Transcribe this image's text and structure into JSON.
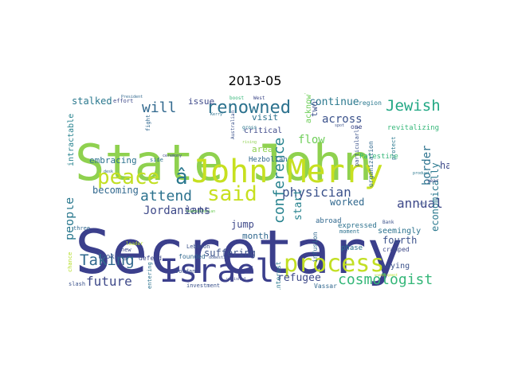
{
  "title": "2013-05",
  "wordcloud": {
    "colormap": "viridis",
    "background": "#ffffff",
    "words": [
      {
        "text": "Secretary",
        "color": "#3b3f8c"
      },
      {
        "text": "State John",
        "color": "#8fd14f"
      },
      {
        "text": "John Merry",
        "color": "#c7e020"
      },
      {
        "text": "Israel",
        "color": "#3b3f8c"
      },
      {
        "text": "process",
        "color": "#c2df23"
      },
      {
        "text": "peace",
        "color": "#c2df23"
      },
      {
        "text": "â",
        "color": "#2a788e"
      },
      {
        "text": "said",
        "color": "#c7e020"
      },
      {
        "text": "renowned",
        "color": "#2c728e"
      },
      {
        "text": "Jewish",
        "color": "#22a884"
      },
      {
        "text": "Taking",
        "color": "#31688e"
      },
      {
        "text": "physician",
        "color": "#3b528b"
      },
      {
        "text": "cosmologist",
        "color": "#35b779"
      },
      {
        "text": "conference",
        "color": "#26828e"
      },
      {
        "text": "attend",
        "color": "#2c728e"
      },
      {
        "text": "annual",
        "color": "#3e4989"
      },
      {
        "text": "people",
        "color": "#2a788e"
      },
      {
        "text": "future",
        "color": "#3e4989"
      },
      {
        "text": "will",
        "color": "#31688e"
      },
      {
        "text": "Jordanians",
        "color": "#3e4989"
      },
      {
        "text": "continue",
        "color": "#2a788e"
      },
      {
        "text": "across",
        "color": "#3b528b"
      },
      {
        "text": "border",
        "color": "#2c728e"
      },
      {
        "text": "flow",
        "color": "#6ece58"
      },
      {
        "text": "refugee",
        "color": "#3e4989"
      },
      {
        "text": "start",
        "color": "#26828e"
      },
      {
        "text": "worked",
        "color": "#31688e"
      },
      {
        "text": "fourth",
        "color": "#3b528b"
      },
      {
        "text": "economically",
        "color": "#2a788e"
      },
      {
        "text": "becoming",
        "color": "#31688e"
      },
      {
        "text": "stalked",
        "color": "#2a788e"
      },
      {
        "text": "issue",
        "color": "#3e4989"
      },
      {
        "text": "visit",
        "color": "#2c728e"
      },
      {
        "text": "two",
        "color": "#3b528b"
      },
      {
        "text": "jump",
        "color": "#3e4989"
      },
      {
        "text": "suffering",
        "color": "#3b528b"
      },
      {
        "text": "month",
        "color": "#31688e"
      },
      {
        "text": "ha",
        "color": "#3e4989"
      },
      {
        "text": "embracing",
        "color": "#2c728e"
      },
      {
        "text": "intractable",
        "color": "#26828e"
      },
      {
        "text": "critical",
        "color": "#3e4989"
      },
      {
        "text": "area",
        "color": "#8fd14f"
      },
      {
        "text": "Hezbollah",
        "color": "#31688e"
      },
      {
        "text": "acknowledge",
        "color": "#6ece58"
      },
      {
        "text": "Palestine",
        "color": "#35b779"
      },
      {
        "text": "seemingly",
        "color": "#2c728e"
      },
      {
        "text": "saying",
        "color": "#3b528b"
      },
      {
        "text": "expressed",
        "color": "#2c728e"
      },
      {
        "text": "doubt",
        "color": "#3e4989"
      },
      {
        "text": "abroad",
        "color": "#31688e"
      },
      {
        "text": "looking",
        "color": "#3b528b"
      },
      {
        "text": "defend",
        "color": "#3e4989"
      },
      {
        "text": "founded",
        "color": "#31688e"
      },
      {
        "text": "Lebanon",
        "color": "#3b528b"
      },
      {
        "text": "infusion",
        "color": "#31688e"
      },
      {
        "text": "phase",
        "color": "#2c728e"
      },
      {
        "text": "cramped",
        "color": "#3e4989"
      },
      {
        "text": "region",
        "color": "#2a788e"
      },
      {
        "text": "revitalizing",
        "color": "#35b779"
      },
      {
        "text": "organization",
        "color": "#31688e"
      },
      {
        "text": "particularly",
        "color": "#3b528b"
      },
      {
        "text": "moment",
        "color": "#2c728e"
      },
      {
        "text": "one",
        "color": "#3e4989"
      },
      {
        "text": "Vassar",
        "color": "#31688e"
      },
      {
        "text": "investment",
        "color": "#3b528b"
      },
      {
        "text": "interest",
        "color": "#2a788e"
      },
      {
        "text": "entering",
        "color": "#2c728e"
      },
      {
        "text": "Jordan",
        "color": "#3b528b"
      },
      {
        "text": "new",
        "color": "#3e4989"
      },
      {
        "text": "three",
        "color": "#31688e"
      },
      {
        "text": "slash",
        "color": "#3b528b"
      },
      {
        "text": "chance",
        "color": "#b5de2b"
      },
      {
        "text": "effort",
        "color": "#3e4989"
      },
      {
        "text": "fight",
        "color": "#31688e"
      },
      {
        "text": "side",
        "color": "#2c728e"
      },
      {
        "text": "Australian",
        "color": "#3b528b"
      },
      {
        "text": "leader",
        "color": "#b5de2b"
      },
      {
        "text": "year",
        "color": "#3e4989"
      },
      {
        "text": "Bank",
        "color": "#3b528b"
      },
      {
        "text": "protect",
        "color": "#2a788e"
      },
      {
        "text": "West",
        "color": "#3e4989"
      },
      {
        "text": "boost",
        "color": "#35b779"
      },
      {
        "text": "President",
        "color": "#31688e"
      },
      {
        "text": "product",
        "color": "#2a788e"
      },
      {
        "text": "Last",
        "color": "#3b528b"
      },
      {
        "text": "vanished",
        "color": "#3e4989"
      },
      {
        "text": "unemployment",
        "color": "#b5de2b"
      },
      {
        "text": "gross",
        "color": "#2a788e"
      },
      {
        "text": "spot",
        "color": "#3b528b"
      },
      {
        "text": "rising",
        "color": "#8fd14f"
      },
      {
        "text": "Kerry",
        "color": "#2c728e"
      },
      {
        "text": "ceremony",
        "color": "#3e4989"
      },
      {
        "text": "desk",
        "color": "#31688e"
      },
      {
        "text": "humanitarian",
        "color": "#6ece58"
      },
      {
        "text": "domestic",
        "color": "#3b528b"
      }
    ]
  }
}
